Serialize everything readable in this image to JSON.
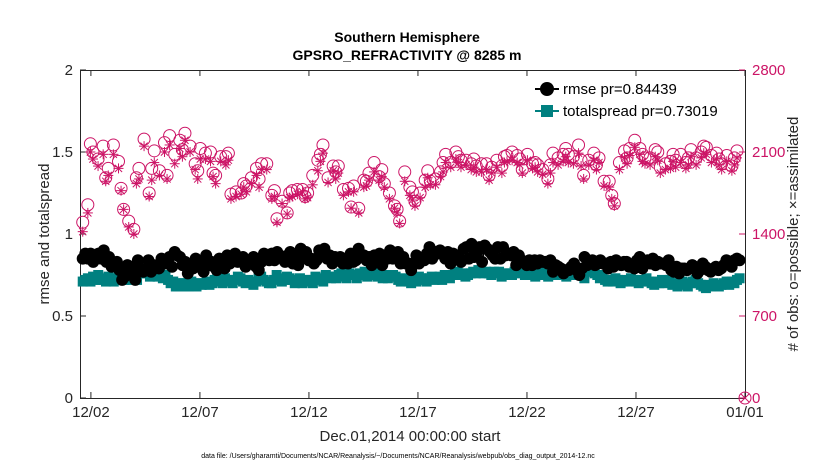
{
  "colors": {
    "rmse": "#000000",
    "spread": "#008080",
    "obs": "#cc1466",
    "axis": "#262626"
  },
  "chart_data": {
    "type": "line",
    "title": "Southern Hemisphere",
    "subtitle": "GPSRO_REFRACTIVITY @ 8285 m",
    "xlabel": "Dec.01,2014 00:00:00 start",
    "ylabel": "rmse and totalspread",
    "ylabel_right": "# of obs: o=possible; ×=assimilated",
    "footnote": "data file: /Users/gharamti/Documents/NCAR/Reanalysis/~/Documents/NCAR/Reanalysis/webpub/obs_diag_output_2014-12.nc",
    "x_range_days": [
      0.5,
      31.0
    ],
    "x_ticks": [
      {
        "day": 1.0,
        "label": "12/02"
      },
      {
        "day": 6.0,
        "label": "12/07"
      },
      {
        "day": 11.0,
        "label": "12/12"
      },
      {
        "day": 16.0,
        "label": "12/17"
      },
      {
        "day": 21.0,
        "label": "12/22"
      },
      {
        "day": 26.0,
        "label": "12/27"
      },
      {
        "day": 31.0,
        "label": "01/01"
      }
    ],
    "ylim": [
      0,
      2
    ],
    "y_ticks": [
      "0",
      "0.5",
      "1",
      "1.5",
      "2"
    ],
    "ylim_right": [
      0,
      2800
    ],
    "y_ticks_right": [
      "0",
      "700",
      "1400",
      "2100",
      "2800"
    ],
    "legend_position": "top-right",
    "series": [
      {
        "name": "rmse",
        "legend": "rmse pr=0.84439",
        "marker": "circle",
        "values": [
          0.85,
          0.88,
          0.85,
          0.88,
          0.83,
          0.87,
          0.88,
          0.85,
          0.9,
          0.83,
          0.86,
          0.8,
          0.82,
          0.83,
          0.78,
          0.72,
          0.74,
          0.81,
          0.76,
          0.8,
          0.72,
          0.84,
          0.78,
          0.77,
          0.79,
          0.84,
          0.77,
          0.81,
          0.8,
          0.79,
          0.85,
          0.83,
          0.82,
          0.86,
          0.8,
          0.89,
          0.87,
          0.86,
          0.81,
          0.83,
          0.76,
          0.8,
          0.79,
          0.85,
          0.8,
          0.82,
          0.77,
          0.87,
          0.81,
          0.83,
          0.8,
          0.78,
          0.85,
          0.84,
          0.79,
          0.87,
          0.82,
          0.85,
          0.88,
          0.83,
          0.84,
          0.86,
          0.8,
          0.82,
          0.84,
          0.86,
          0.8,
          0.78,
          0.83,
          0.88,
          0.85,
          0.84,
          0.88,
          0.84,
          0.89,
          0.87,
          0.86,
          0.83,
          0.87,
          0.89,
          0.82,
          0.87,
          0.81,
          0.91,
          0.86,
          0.89,
          0.84,
          0.85,
          0.82,
          0.84,
          0.9,
          0.88,
          0.91,
          0.85,
          0.87,
          0.82,
          0.86,
          0.84,
          0.86,
          0.82,
          0.85,
          0.82,
          0.88,
          0.83,
          0.84,
          0.91,
          0.86,
          0.87,
          0.84,
          0.86,
          0.81,
          0.87,
          0.85,
          0.88,
          0.81,
          0.87,
          0.85,
          0.9,
          0.85,
          0.86,
          0.89,
          0.82,
          0.86,
          0.82,
          0.82,
          0.78,
          0.82,
          0.87,
          0.82,
          0.84,
          0.84,
          0.88,
          0.92,
          0.85,
          0.89,
          0.88,
          0.9,
          0.88,
          0.85,
          0.89,
          0.82,
          0.88,
          0.87,
          0.87,
          0.83,
          0.91,
          0.92,
          0.85,
          0.94,
          0.86,
          0.89,
          0.92,
          0.83,
          0.93,
          0.91,
          0.89,
          0.87,
          0.85,
          0.92,
          0.85,
          0.92,
          0.87,
          0.88,
          0.87,
          0.89,
          0.81,
          0.87,
          0.84,
          0.83,
          0.81,
          0.84,
          0.81,
          0.84,
          0.82,
          0.84,
          0.83,
          0.83,
          0.82,
          0.84,
          0.77,
          0.81,
          0.8,
          0.79,
          0.76,
          0.78,
          0.78,
          0.8,
          0.82,
          0.78,
          0.75,
          0.79,
          0.86,
          0.81,
          0.83,
          0.84,
          0.81,
          0.82,
          0.84,
          0.82,
          0.82,
          0.79,
          0.83,
          0.8,
          0.84,
          0.82,
          0.81,
          0.83,
          0.83,
          0.8,
          0.8,
          0.79,
          0.84,
          0.86,
          0.79,
          0.82,
          0.84,
          0.82,
          0.85,
          0.81,
          0.83,
          0.82,
          0.82,
          0.81,
          0.84,
          0.78,
          0.77,
          0.8,
          0.76,
          0.79,
          0.79,
          0.78,
          0.79,
          0.81,
          0.8,
          0.76,
          0.78,
          0.82,
          0.8,
          0.78,
          0.77,
          0.79,
          0.8,
          0.78,
          0.79,
          0.81,
          0.84,
          0.82,
          0.8,
          0.84,
          0.85,
          0.84
        ]
      },
      {
        "name": "totalspread",
        "legend": "totalspread pr=0.73019",
        "marker": "square",
        "values": [
          0.71,
          0.72,
          0.73,
          0.71,
          0.74,
          0.72,
          0.75,
          0.72,
          0.73,
          0.71,
          0.74,
          0.73,
          0.71,
          0.72,
          0.74,
          0.72,
          0.72,
          0.75,
          0.73,
          0.72,
          0.75,
          0.72,
          0.76,
          0.79,
          0.78,
          0.76,
          0.74,
          0.77,
          0.75,
          0.74,
          0.76,
          0.73,
          0.75,
          0.72,
          0.7,
          0.71,
          0.68,
          0.68,
          0.7,
          0.7,
          0.68,
          0.68,
          0.71,
          0.7,
          0.68,
          0.7,
          0.69,
          0.7,
          0.71,
          0.69,
          0.7,
          0.72,
          0.74,
          0.71,
          0.7,
          0.73,
          0.72,
          0.71,
          0.7,
          0.72,
          0.74,
          0.73,
          0.71,
          0.7,
          0.72,
          0.71,
          0.69,
          0.71,
          0.73,
          0.74,
          0.72,
          0.71,
          0.7,
          0.7,
          0.72,
          0.75,
          0.73,
          0.71,
          0.72,
          0.74,
          0.73,
          0.72,
          0.7,
          0.72,
          0.73,
          0.7,
          0.72,
          0.71,
          0.72,
          0.7,
          0.74,
          0.73,
          0.72,
          0.71,
          0.75,
          0.74,
          0.73,
          0.74,
          0.73,
          0.75,
          0.76,
          0.74,
          0.73,
          0.76,
          0.75,
          0.75,
          0.73,
          0.76,
          0.75,
          0.77,
          0.74,
          0.76,
          0.77,
          0.75,
          0.74,
          0.76,
          0.73,
          0.75,
          0.73,
          0.74,
          0.75,
          0.74,
          0.72,
          0.71,
          0.73,
          0.72,
          0.71,
          0.7,
          0.72,
          0.71,
          0.74,
          0.73,
          0.72,
          0.71,
          0.73,
          0.74,
          0.72,
          0.73,
          0.74,
          0.72,
          0.75,
          0.74,
          0.73,
          0.75,
          0.76,
          0.77,
          0.75,
          0.76,
          0.74,
          0.75,
          0.76,
          0.77,
          0.76,
          0.78,
          0.77,
          0.76,
          0.77,
          0.76,
          0.75,
          0.77,
          0.76,
          0.77,
          0.74,
          0.76,
          0.75,
          0.76,
          0.75,
          0.77,
          0.77,
          0.76,
          0.78,
          0.75,
          0.77,
          0.76,
          0.75,
          0.74,
          0.75,
          0.76,
          0.77,
          0.75,
          0.74,
          0.76,
          0.75,
          0.77,
          0.76,
          0.75,
          0.76,
          0.74,
          0.75,
          0.75,
          0.76,
          0.77,
          0.76,
          0.75,
          0.73,
          0.77,
          0.78,
          0.77,
          0.76,
          0.75,
          0.73,
          0.75,
          0.72,
          0.71,
          0.72,
          0.71,
          0.73,
          0.72,
          0.7,
          0.71,
          0.72,
          0.71,
          0.73,
          0.72,
          0.71,
          0.7,
          0.72,
          0.71,
          0.73,
          0.71,
          0.7,
          0.69,
          0.71,
          0.7,
          0.72,
          0.7,
          0.71,
          0.72,
          0.69,
          0.7,
          0.68,
          0.7,
          0.71,
          0.69,
          0.68,
          0.7,
          0.71,
          0.72,
          0.7,
          0.69,
          0.68,
          0.67,
          0.69,
          0.68,
          0.7,
          0.69,
          0.68,
          0.69,
          0.7,
          0.71,
          0.69,
          0.71,
          0.7,
          0.72,
          0.73
        ]
      },
      {
        "name": "possible",
        "axis": "right",
        "marker": "open-circle",
        "values": [
          1500,
          1580,
          1650,
          2170,
          2100,
          1970,
          2040,
          2080,
          2150,
          1880,
          1960,
          2080,
          2160,
          1900,
          2020,
          1790,
          1610,
          1560,
          1510,
          1620,
          1440,
          1880,
          1960,
          1870,
          2210,
          2080,
          1750,
          1960,
          2110,
          2050,
          1940,
          2150,
          2180,
          1900,
          2240,
          2230,
          2080,
          2180,
          2200,
          2120,
          2260,
          2060,
          2150,
          1870,
          2000,
          1940,
          2130,
          1990,
          2090,
          1870,
          2100,
          1920,
          1900,
          1980,
          2060,
          2130,
          2060,
          2090,
          1740,
          1700,
          1760,
          1620,
          1750,
          1830,
          1810,
          1890,
          1880,
          1960,
          1960,
          1870,
          2000,
          1980,
          2000,
          1860,
          1730,
          1770,
          1530,
          1560,
          1680,
          1620,
          1580,
          1750,
          1770,
          1850,
          1780,
          1700,
          1780,
          1720,
          1750,
          1910,
          1900,
          1930,
          2030,
          2080,
          2160,
          2100,
          1880,
          1970,
          1980,
          1930,
          1980,
          1940,
          1780,
          1740,
          1790,
          1630,
          1810,
          1790,
          1620,
          1920,
          1860,
          1850,
          1920,
          1820,
          2010,
          1910,
          1890,
          1950,
          1830,
          1780,
          1750,
          1790,
          1640,
          1610,
          1510,
          1860,
          1930,
          1790,
          1800,
          1760,
          1680,
          1690,
          1750,
          1930,
          1860,
          1940,
          1850,
          1940,
          1870,
          1900,
          1930,
          2010,
          2080,
          1990,
          2010,
          1940,
          2100,
          2060,
          2030,
          2060,
          2030,
          2030,
          2000,
          2040,
          1980,
          1900,
          2000,
          2000,
          2000,
          1900,
          1970,
          1900,
          2030,
          2060,
          1980,
          2060,
          2070,
          2120,
          2100,
          2100,
          2070,
          2040,
          1950,
          2060,
          2080,
          1980,
          2000,
          2010,
          1990,
          1940,
          1950,
          1930,
          1870,
          1990,
          2090,
          1880,
          2050,
          2020,
          2080,
          2130,
          2080,
          2080,
          2060,
          2050,
          2160,
          2030,
          1900,
          2020,
          2030,
          2050,
          2090,
          1990,
          2050,
          1900,
          1850,
          1820,
          1850,
          1730,
          1660,
          1830,
          2010,
          2080,
          2110,
          2050,
          2130,
          2070,
          2200,
          2110,
          2130,
          2080,
          2050,
          2040,
          2050,
          2000,
          2120,
          2100,
          1970,
          2050,
          2000,
          1950,
          2020,
          2080,
          2030,
          2040,
          2080,
          1970,
          2010,
          2050,
          2120,
          2060,
          2050,
          2110,
          2100,
          2150,
          2140,
          2080,
          2070,
          2100,
          2090,
          2040,
          2000,
          2020,
          2070,
          1940,
          1980,
          2050,
          2110,
          2160
        ]
      },
      {
        "name": "assimilated",
        "axis": "right",
        "marker": "asterisk",
        "values": [
          1420,
          1580,
          1580,
          2100,
          2040,
          1940,
          1980,
          2000,
          2080,
          1850,
          1900,
          2040,
          2080,
          1880,
          1960,
          1770,
          1610,
          1520,
          1460,
          1560,
          1400,
          1830,
          1870,
          1810,
          2150,
          1990,
          1720,
          1860,
          2010,
          1980,
          1900,
          2060,
          2100,
          1870,
          2160,
          2180,
          2000,
          2120,
          2130,
          2060,
          2200,
          2000,
          2100,
          1810,
          1950,
          1870,
          2040,
          1940,
          2040,
          1830,
          2020,
          1890,
          1830,
          1900,
          2020,
          2040,
          1990,
          2030,
          1700,
          1680,
          1720,
          1580,
          1740,
          1800,
          1760,
          1840,
          1830,
          1920,
          1900,
          1800,
          1950,
          1930,
          1950,
          1810,
          1700,
          1720,
          1500,
          1540,
          1660,
          1620,
          1570,
          1710,
          1720,
          1830,
          1740,
          1680,
          1760,
          1700,
          1710,
          1850,
          1820,
          1870,
          1940,
          2020,
          2090,
          2000,
          1840,
          1900,
          1940,
          1870,
          1920,
          1890,
          1730,
          1700,
          1760,
          1620,
          1760,
          1730,
          1580,
          1860,
          1800,
          1810,
          1860,
          1750,
          1930,
          1850,
          1860,
          1890,
          1800,
          1730,
          1700,
          1760,
          1620,
          1580,
          1490,
          1810,
          1850,
          1720,
          1730,
          1690,
          1640,
          1670,
          1710,
          1880,
          1800,
          1880,
          1820,
          1880,
          1820,
          1860,
          1890,
          1930,
          2010,
          1930,
          1970,
          1890,
          2040,
          2010,
          1970,
          1990,
          1990,
          1980,
          1950,
          1970,
          1930,
          1860,
          1930,
          1940,
          1950,
          1860,
          1920,
          1870,
          1970,
          1990,
          1920,
          2010,
          2020,
          2060,
          2030,
          2050,
          2010,
          1990,
          1920,
          2000,
          2030,
          1940,
          1960,
          1970,
          1930,
          1880,
          1910,
          1880,
          1830,
          1920,
          2010,
          1830,
          1990,
          1960,
          2020,
          2060,
          2010,
          2020,
          2000,
          1990,
          2090,
          1980,
          1870,
          1960,
          1990,
          2010,
          2030,
          1950,
          2010,
          1860,
          1810,
          1780,
          1800,
          1700,
          1640,
          1790,
          1950,
          2010,
          2050,
          2000,
          2070,
          2020,
          2140,
          2050,
          2080,
          2020,
          2000,
          2000,
          1990,
          1940,
          2060,
          2030,
          1920,
          1990,
          1950,
          1910,
          1960,
          2020,
          1970,
          1990,
          2010,
          1930,
          1960,
          1990,
          2060,
          2000,
          1990,
          2050,
          2050,
          2090,
          2080,
          2020,
          2010,
          2040,
          2040,
          1990,
          1950,
          1970,
          2020,
          1890,
          1940,
          1990,
          2050,
          2080
        ]
      }
    ]
  }
}
